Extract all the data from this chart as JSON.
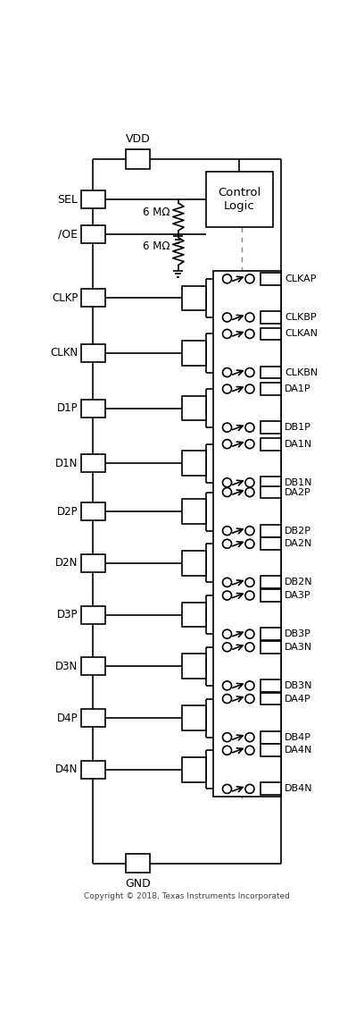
{
  "fig_width": 4.08,
  "fig_height": 11.42,
  "bg_color": "#ffffff",
  "line_color": "#000000",
  "title": "Copyright © 2018, Texas Instruments Incorporated",
  "resistor_label": "6 MΩ",
  "vdd_label": "VDD",
  "gnd_label": "GND",
  "control_label": "Control\nLogic",
  "row_labels": [
    "CLKP",
    "CLKN",
    "D1P",
    "D1N",
    "D2P",
    "D2N",
    "D3P",
    "D3N",
    "D4P",
    "D4N"
  ],
  "out_pairs": [
    [
      "CLKAP",
      "CLKBP"
    ],
    [
      "CLKAN",
      "CLKBN"
    ],
    [
      "DA1P",
      "DB1P"
    ],
    [
      "DA1N",
      "DB1N"
    ],
    [
      "DA2P",
      "DB2P"
    ],
    [
      "DA2N",
      "DB2N"
    ],
    [
      "DA3P",
      "DB3P"
    ],
    [
      "DA3N",
      "DB3N"
    ],
    [
      "DA4P",
      "DB4P"
    ],
    [
      "DA4N",
      "DB4N"
    ]
  ]
}
